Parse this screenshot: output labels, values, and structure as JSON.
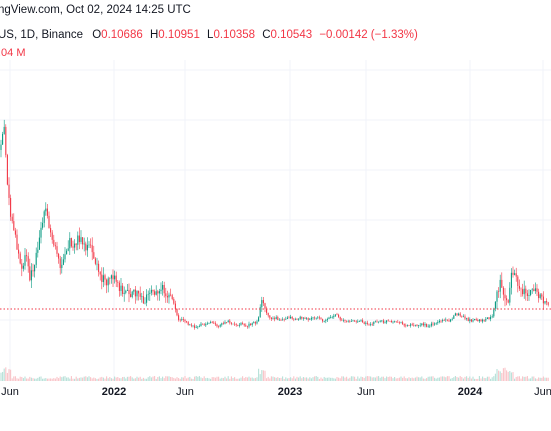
{
  "header": {
    "source_line": "ngView.com, Oct 02, 2024 14:25 UTC",
    "symbol_line": "US, 1D, Binance",
    "ohlc": {
      "o_label": "O",
      "o_value": "0.10686",
      "h_label": "H",
      "h_value": "0.10951",
      "l_label": "L",
      "l_value": "0.10358",
      "c_label": "C",
      "c_value": "0.10543",
      "change": "−0.00142 (−1.33%)"
    },
    "volume_line": ".04 M"
  },
  "colors": {
    "up": "#089981",
    "down": "#f23645",
    "price_line": "#f23645",
    "volume_up": "#b7e0d8",
    "volume_down": "#f9c4c8",
    "grid": "#f0f3fa",
    "text": "#131722"
  },
  "chart_data": {
    "type": "candlestick",
    "x_tick_labels": [
      "Jun",
      "2022",
      "Jun",
      "2023",
      "Jun",
      "2024",
      "Jun"
    ],
    "last_close": 0.10543,
    "price_line_style": "dotted",
    "grid": true,
    "shows_volume": true,
    "y_axis_scale": "log"
  }
}
